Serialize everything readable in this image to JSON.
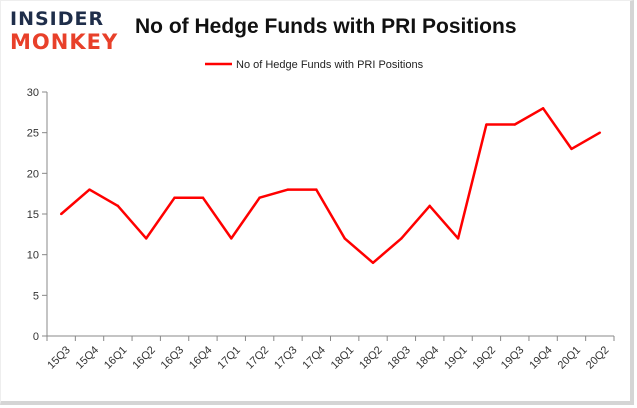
{
  "brand": {
    "line1": "INSIDER",
    "line2": "MONKEY",
    "color_dark": "#1f2e4a",
    "color_accent": "#e8402a"
  },
  "chart_data": {
    "type": "line",
    "title": "No of Hedge Funds with PRI Positions",
    "xlabel": "",
    "ylabel": "",
    "categories": [
      "15Q3",
      "15Q4",
      "16Q1",
      "16Q2",
      "16Q3",
      "16Q4",
      "17Q1",
      "17Q2",
      "17Q3",
      "17Q4",
      "18Q1",
      "18Q2",
      "18Q3",
      "18Q4",
      "19Q1",
      "19Q2",
      "19Q3",
      "19Q4",
      "20Q1",
      "20Q2"
    ],
    "series": [
      {
        "name": "No of Hedge Funds with PRI Positions",
        "color": "#ff0000",
        "values": [
          15,
          18,
          16,
          12,
          17,
          17,
          12,
          17,
          18,
          18,
          12,
          9,
          12,
          16,
          12,
          26,
          26,
          28,
          23,
          25
        ]
      }
    ],
    "ylim": [
      0,
      30
    ],
    "yticks": [
      0,
      5,
      10,
      15,
      20,
      25,
      30
    ],
    "grid": false,
    "legend": "top-center"
  }
}
